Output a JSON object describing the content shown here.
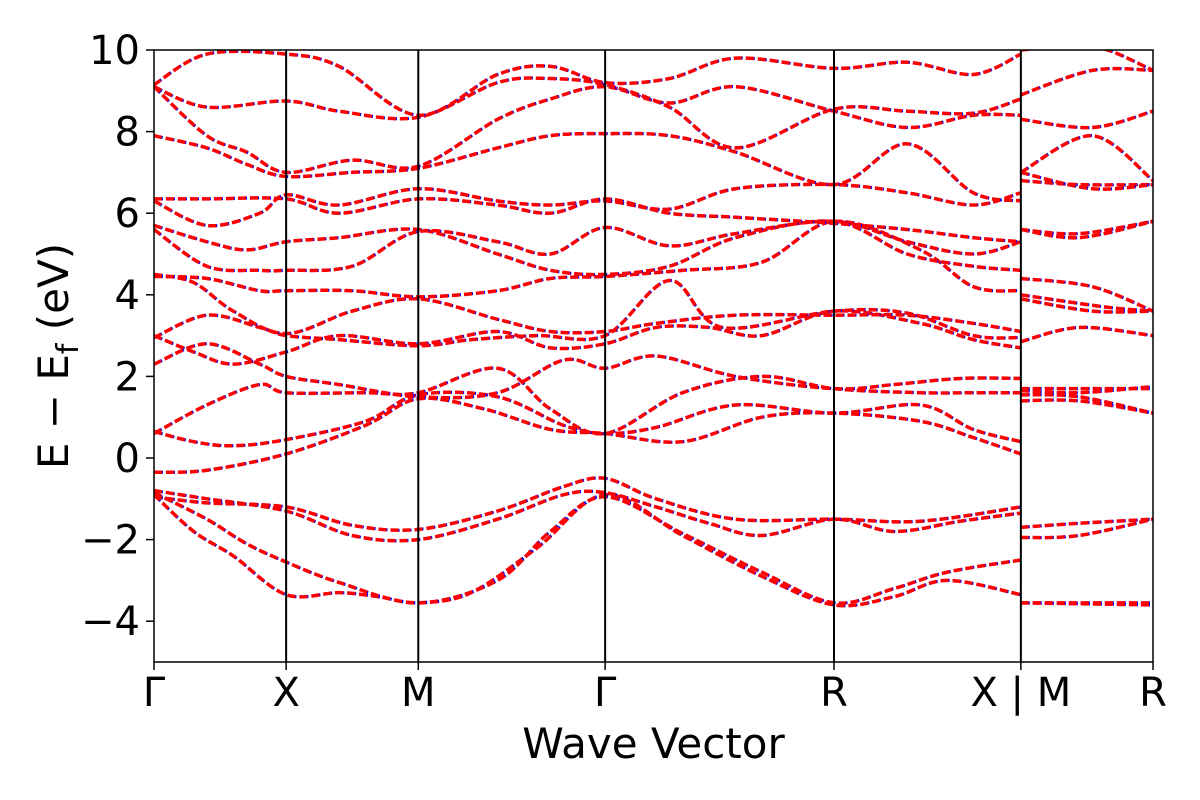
{
  "chart_data": {
    "type": "line",
    "title": "",
    "xlabel": "Wave Vector",
    "ylabel": {
      "main": "E − E",
      "subscript": "f",
      "unit": " (eV)"
    },
    "ylim": [
      -5,
      10
    ],
    "yticks": [
      {
        "value": 10,
        "label": "10"
      },
      {
        "value": 8,
        "label": "8"
      },
      {
        "value": 6,
        "label": "6"
      },
      {
        "value": 4,
        "label": "4"
      },
      {
        "value": 2,
        "label": "2"
      },
      {
        "value": 0,
        "label": "0"
      },
      {
        "value": -2,
        "label": "−2"
      },
      {
        "value": -4,
        "label": "−4"
      }
    ],
    "kpath": [
      {
        "label": "Γ",
        "pos": 0.0
      },
      {
        "label": "X",
        "pos": 0.5
      },
      {
        "label": "M",
        "pos": 1.0
      },
      {
        "label": "Γ",
        "pos": 1.707
      },
      {
        "label": "R",
        "pos": 2.573
      },
      {
        "label": "X | M",
        "pos": 3.28
      },
      {
        "label": "R",
        "pos": 3.78
      }
    ],
    "xlim": [
      0.0,
      3.78
    ],
    "grid": false,
    "legend": "none",
    "series_styles": [
      {
        "color": "#0000ff",
        "dash": "dotted",
        "width": 3
      },
      {
        "color": "#ff0000",
        "dash": "dashed",
        "width": 3.5
      }
    ],
    "bands": [
      [
        [
          0,
          -0.9
        ],
        [
          0.15,
          -1.8
        ],
        [
          0.3,
          -2.4
        ],
        [
          0.5,
          -3.35
        ],
        [
          0.7,
          -3.3
        ],
        [
          0.85,
          -3.4
        ],
        [
          1.0,
          -3.55
        ],
        [
          1.2,
          -3.3
        ],
        [
          1.45,
          -2.2
        ],
        [
          1.707,
          -0.9
        ],
        [
          2.0,
          -1.9
        ],
        [
          2.3,
          -2.9
        ],
        [
          2.573,
          -3.6
        ],
        [
          2.8,
          -3.4
        ],
        [
          3.0,
          -3.0
        ],
        [
          3.28,
          -3.35
        ],
        [
          3.28,
          -3.55
        ],
        [
          3.78,
          -3.6
        ]
      ],
      [
        [
          0,
          -0.85
        ],
        [
          0.2,
          -1.5
        ],
        [
          0.35,
          -2.1
        ],
        [
          0.5,
          -2.55
        ],
        [
          0.7,
          -3.05
        ],
        [
          1.0,
          -3.55
        ],
        [
          1.3,
          -3.0
        ],
        [
          1.5,
          -1.8
        ],
        [
          1.707,
          -0.95
        ],
        [
          2.0,
          -1.85
        ],
        [
          2.3,
          -2.8
        ],
        [
          2.573,
          -3.55
        ],
        [
          2.8,
          -3.2
        ],
        [
          3.0,
          -2.8
        ],
        [
          3.28,
          -2.5
        ],
        [
          3.28,
          -3.55
        ],
        [
          3.78,
          -3.55
        ]
      ],
      [
        [
          0,
          -0.8
        ],
        [
          0.2,
          -1.0
        ],
        [
          0.5,
          -1.3
        ],
        [
          0.75,
          -1.9
        ],
        [
          1.0,
          -2.0
        ],
        [
          1.3,
          -1.5
        ],
        [
          1.55,
          -0.9
        ],
        [
          1.707,
          -0.85
        ],
        [
          1.9,
          -1.2
        ],
        [
          2.1,
          -1.6
        ],
        [
          2.3,
          -1.9
        ],
        [
          2.573,
          -1.5
        ],
        [
          2.8,
          -1.8
        ],
        [
          3.05,
          -1.55
        ],
        [
          3.28,
          -1.35
        ],
        [
          3.28,
          -1.95
        ],
        [
          3.5,
          -1.9
        ],
        [
          3.78,
          -1.5
        ]
      ],
      [
        [
          0,
          -0.95
        ],
        [
          0.2,
          -1.1
        ],
        [
          0.5,
          -1.2
        ],
        [
          0.75,
          -1.65
        ],
        [
          1.0,
          -1.75
        ],
        [
          1.3,
          -1.3
        ],
        [
          1.55,
          -0.7
        ],
        [
          1.707,
          -0.5
        ],
        [
          1.9,
          -1.0
        ],
        [
          2.2,
          -1.5
        ],
        [
          2.573,
          -1.5
        ],
        [
          2.9,
          -1.55
        ],
        [
          3.28,
          -1.2
        ],
        [
          3.28,
          -1.7
        ],
        [
          3.5,
          -1.6
        ],
        [
          3.78,
          -1.5
        ]
      ],
      [
        [
          0,
          -0.35
        ],
        [
          0.2,
          -0.3
        ],
        [
          0.5,
          0.1
        ],
        [
          0.8,
          0.8
        ],
        [
          1.0,
          1.45
        ],
        [
          1.25,
          1.2
        ],
        [
          1.5,
          0.7
        ],
        [
          1.707,
          0.6
        ],
        [
          2.0,
          0.4
        ],
        [
          2.3,
          1.0
        ],
        [
          2.573,
          1.1
        ],
        [
          2.9,
          0.9
        ],
        [
          3.1,
          0.5
        ],
        [
          3.28,
          0.1
        ],
        [
          3.28,
          1.4
        ],
        [
          3.5,
          1.4
        ],
        [
          3.78,
          1.1
        ]
      ],
      [
        [
          0,
          0.65
        ],
        [
          0.15,
          0.4
        ],
        [
          0.3,
          0.3
        ],
        [
          0.5,
          0.45
        ],
        [
          0.8,
          0.9
        ],
        [
          1.0,
          1.55
        ],
        [
          1.3,
          1.5
        ],
        [
          1.55,
          0.8
        ],
        [
          1.707,
          0.6
        ],
        [
          1.9,
          0.75
        ],
        [
          2.2,
          1.3
        ],
        [
          2.573,
          1.1
        ],
        [
          2.9,
          1.3
        ],
        [
          3.1,
          0.7
        ],
        [
          3.28,
          0.4
        ],
        [
          3.28,
          1.55
        ],
        [
          3.5,
          1.5
        ],
        [
          3.78,
          1.1
        ]
      ],
      [
        [
          0,
          0.6
        ],
        [
          0.2,
          1.3
        ],
        [
          0.4,
          1.8
        ],
        [
          0.5,
          1.6
        ],
        [
          0.8,
          1.6
        ],
        [
          1.0,
          1.6
        ],
        [
          1.3,
          2.2
        ],
        [
          1.5,
          1.2
        ],
        [
          1.707,
          0.6
        ],
        [
          2.0,
          1.6
        ],
        [
          2.3,
          2.0
        ],
        [
          2.573,
          1.7
        ],
        [
          2.9,
          1.6
        ],
        [
          3.1,
          1.6
        ],
        [
          3.28,
          1.6
        ],
        [
          3.28,
          1.65
        ],
        [
          3.5,
          1.6
        ],
        [
          3.78,
          1.75
        ]
      ],
      [
        [
          0,
          2.3
        ],
        [
          0.2,
          2.8
        ],
        [
          0.4,
          2.3
        ],
        [
          0.5,
          2.0
        ],
        [
          0.7,
          1.8
        ],
        [
          1.0,
          1.5
        ],
        [
          1.3,
          1.6
        ],
        [
          1.55,
          2.4
        ],
        [
          1.707,
          2.2
        ],
        [
          1.9,
          2.5
        ],
        [
          2.2,
          2.0
        ],
        [
          2.573,
          1.7
        ],
        [
          2.8,
          1.8
        ],
        [
          3.05,
          1.95
        ],
        [
          3.28,
          1.95
        ],
        [
          3.28,
          1.7
        ],
        [
          3.5,
          1.7
        ],
        [
          3.78,
          1.7
        ]
      ],
      [
        [
          0,
          3.0
        ],
        [
          0.15,
          2.6
        ],
        [
          0.3,
          2.3
        ],
        [
          0.5,
          2.6
        ],
        [
          0.7,
          3.0
        ],
        [
          1.0,
          2.8
        ],
        [
          1.3,
          3.1
        ],
        [
          1.5,
          2.7
        ],
        [
          1.707,
          2.8
        ],
        [
          1.9,
          3.2
        ],
        [
          2.1,
          3.2
        ],
        [
          2.3,
          3.0
        ],
        [
          2.573,
          3.6
        ],
        [
          2.9,
          3.3
        ],
        [
          3.1,
          2.9
        ],
        [
          3.28,
          2.7
        ],
        [
          3.28,
          2.85
        ],
        [
          3.5,
          3.2
        ],
        [
          3.78,
          3.0
        ]
      ],
      [
        [
          0,
          2.95
        ],
        [
          0.2,
          3.5
        ],
        [
          0.4,
          3.2
        ],
        [
          0.5,
          3.0
        ],
        [
          0.7,
          2.9
        ],
        [
          1.0,
          2.75
        ],
        [
          1.2,
          2.9
        ],
        [
          1.45,
          3.0
        ],
        [
          1.707,
          3.0
        ],
        [
          1.95,
          4.35
        ],
        [
          2.15,
          3.2
        ],
        [
          2.573,
          3.6
        ],
        [
          2.85,
          3.55
        ],
        [
          3.1,
          3.0
        ],
        [
          3.28,
          2.95
        ],
        [
          3.28,
          3.9
        ],
        [
          3.55,
          3.6
        ],
        [
          3.78,
          3.6
        ]
      ],
      [
        [
          0,
          4.5
        ],
        [
          0.15,
          4.3
        ],
        [
          0.3,
          3.6
        ],
        [
          0.5,
          3.05
        ],
        [
          0.75,
          3.6
        ],
        [
          1.0,
          3.9
        ],
        [
          1.3,
          3.4
        ],
        [
          1.5,
          3.1
        ],
        [
          1.707,
          3.1
        ],
        [
          1.9,
          3.3
        ],
        [
          2.2,
          3.5
        ],
        [
          2.573,
          3.5
        ],
        [
          2.85,
          3.5
        ],
        [
          3.1,
          3.3
        ],
        [
          3.28,
          3.1
        ],
        [
          3.28,
          4.0
        ],
        [
          3.6,
          3.7
        ],
        [
          3.78,
          3.6
        ]
      ],
      [
        [
          0,
          4.45
        ],
        [
          0.2,
          4.4
        ],
        [
          0.4,
          4.1
        ],
        [
          0.5,
          4.1
        ],
        [
          0.75,
          4.1
        ],
        [
          1.0,
          3.95
        ],
        [
          1.3,
          4.1
        ],
        [
          1.5,
          4.4
        ],
        [
          1.707,
          4.45
        ],
        [
          2.0,
          4.6
        ],
        [
          2.3,
          4.8
        ],
        [
          2.573,
          5.8
        ],
        [
          2.9,
          5.1
        ],
        [
          3.1,
          4.2
        ],
        [
          3.28,
          4.1
        ],
        [
          3.28,
          4.4
        ],
        [
          3.55,
          4.2
        ],
        [
          3.78,
          3.6
        ]
      ],
      [
        [
          0,
          5.7
        ],
        [
          0.2,
          5.3
        ],
        [
          0.35,
          5.1
        ],
        [
          0.5,
          5.3
        ],
        [
          0.7,
          5.4
        ],
        [
          1.0,
          5.6
        ],
        [
          1.3,
          5.0
        ],
        [
          1.5,
          4.6
        ],
        [
          1.707,
          4.5
        ],
        [
          1.95,
          4.7
        ],
        [
          2.2,
          5.4
        ],
        [
          2.573,
          5.8
        ],
        [
          2.85,
          5.0
        ],
        [
          3.1,
          4.7
        ],
        [
          3.28,
          4.6
        ],
        [
          3.28,
          5.6
        ],
        [
          3.5,
          5.4
        ],
        [
          3.78,
          5.8
        ]
      ],
      [
        [
          0,
          5.6
        ],
        [
          0.2,
          4.7
        ],
        [
          0.4,
          4.6
        ],
        [
          0.5,
          4.6
        ],
        [
          0.75,
          4.7
        ],
        [
          1.0,
          5.55
        ],
        [
          1.3,
          5.3
        ],
        [
          1.5,
          5.0
        ],
        [
          1.707,
          5.65
        ],
        [
          1.95,
          5.2
        ],
        [
          2.2,
          5.5
        ],
        [
          2.573,
          5.8
        ],
        [
          2.85,
          5.3
        ],
        [
          3.1,
          5.0
        ],
        [
          3.28,
          5.3
        ],
        [
          3.28,
          5.6
        ],
        [
          3.5,
          5.5
        ],
        [
          3.78,
          5.8
        ]
      ],
      [
        [
          0,
          6.35
        ],
        [
          0.2,
          6.35
        ],
        [
          0.5,
          6.35
        ],
        [
          0.7,
          6.0
        ],
        [
          1.0,
          6.35
        ],
        [
          1.3,
          6.2
        ],
        [
          1.5,
          6.0
        ],
        [
          1.707,
          6.35
        ],
        [
          1.95,
          6.0
        ],
        [
          2.2,
          5.9
        ],
        [
          2.573,
          5.75
        ],
        [
          2.85,
          5.6
        ],
        [
          3.1,
          5.4
        ],
        [
          3.28,
          5.3
        ],
        [
          3.28,
          6.8
        ],
        [
          3.5,
          6.7
        ],
        [
          3.78,
          6.7
        ]
      ],
      [
        [
          0,
          6.3
        ],
        [
          0.2,
          5.7
        ],
        [
          0.4,
          6.0
        ],
        [
          0.5,
          6.45
        ],
        [
          0.7,
          6.2
        ],
        [
          1.0,
          6.6
        ],
        [
          1.3,
          6.3
        ],
        [
          1.5,
          6.2
        ],
        [
          1.707,
          6.3
        ],
        [
          1.95,
          6.1
        ],
        [
          2.2,
          6.6
        ],
        [
          2.573,
          6.7
        ],
        [
          2.85,
          6.5
        ],
        [
          3.1,
          6.2
        ],
        [
          3.28,
          6.5
        ],
        [
          3.28,
          7.0
        ],
        [
          3.55,
          6.6
        ],
        [
          3.78,
          6.7
        ]
      ],
      [
        [
          0,
          7.9
        ],
        [
          0.2,
          7.6
        ],
        [
          0.35,
          7.2
        ],
        [
          0.5,
          6.9
        ],
        [
          0.75,
          7.0
        ],
        [
          1.0,
          7.1
        ],
        [
          1.3,
          7.6
        ],
        [
          1.5,
          7.9
        ],
        [
          1.707,
          7.95
        ],
        [
          1.95,
          7.9
        ],
        [
          2.2,
          7.5
        ],
        [
          2.573,
          6.7
        ],
        [
          2.85,
          7.7
        ],
        [
          3.1,
          6.5
        ],
        [
          3.28,
          6.3
        ],
        [
          3.28,
          7.0
        ],
        [
          3.55,
          7.9
        ],
        [
          3.78,
          6.8
        ]
      ],
      [
        [
          0,
          9.1
        ],
        [
          0.2,
          7.9
        ],
        [
          0.35,
          7.5
        ],
        [
          0.5,
          7.0
        ],
        [
          0.75,
          7.3
        ],
        [
          1.0,
          7.15
        ],
        [
          1.3,
          8.3
        ],
        [
          1.5,
          8.8
        ],
        [
          1.707,
          9.1
        ],
        [
          1.95,
          8.7
        ],
        [
          2.2,
          9.1
        ],
        [
          2.573,
          8.5
        ],
        [
          2.85,
          8.1
        ],
        [
          3.1,
          8.4
        ],
        [
          3.28,
          8.4
        ],
        [
          3.28,
          8.3
        ],
        [
          3.55,
          8.1
        ],
        [
          3.78,
          8.5
        ]
      ],
      [
        [
          0,
          9.1
        ],
        [
          0.2,
          8.6
        ],
        [
          0.5,
          8.75
        ],
        [
          0.7,
          8.5
        ],
        [
          1.0,
          8.35
        ],
        [
          1.3,
          9.2
        ],
        [
          1.5,
          9.3
        ],
        [
          1.707,
          9.15
        ],
        [
          1.95,
          8.6
        ],
        [
          2.2,
          7.6
        ],
        [
          2.573,
          8.55
        ],
        [
          2.85,
          8.5
        ],
        [
          3.1,
          8.45
        ],
        [
          3.28,
          8.8
        ],
        [
          3.28,
          8.9
        ],
        [
          3.55,
          9.5
        ],
        [
          3.78,
          9.5
        ]
      ],
      [
        [
          0,
          9.15
        ],
        [
          0.2,
          9.9
        ],
        [
          0.5,
          9.9
        ],
        [
          0.7,
          9.6
        ],
        [
          1.0,
          8.4
        ],
        [
          1.3,
          9.4
        ],
        [
          1.5,
          9.6
        ],
        [
          1.707,
          9.2
        ],
        [
          1.95,
          9.3
        ],
        [
          2.2,
          9.8
        ],
        [
          2.573,
          9.55
        ],
        [
          2.85,
          9.7
        ],
        [
          3.1,
          9.4
        ],
        [
          3.28,
          9.9
        ],
        [
          3.28,
          10.0
        ],
        [
          3.55,
          10.1
        ],
        [
          3.78,
          9.5
        ]
      ]
    ]
  }
}
